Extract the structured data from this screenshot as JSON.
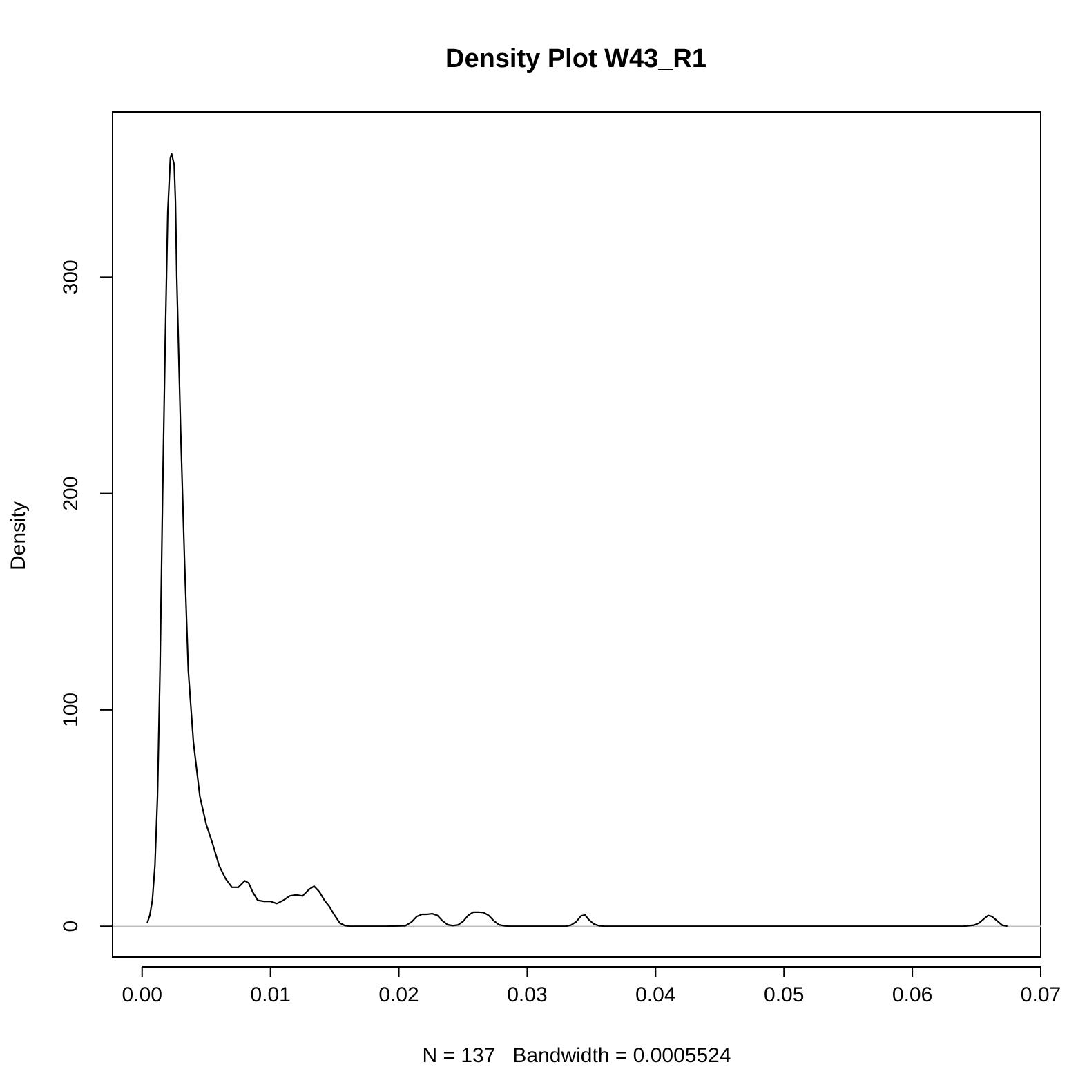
{
  "chart_data": {
    "type": "line",
    "title": "Density Plot W43_R1",
    "xlabel": "N = 137   Bandwidth = 0.0005524",
    "ylabel": "Density",
    "xlim": [
      -0.0023,
      0.07
    ],
    "ylim": [
      -14.3,
      376.4
    ],
    "x_ticks": [
      0.0,
      0.01,
      0.02,
      0.03,
      0.04,
      0.05,
      0.06,
      0.07
    ],
    "x_tick_labels": [
      "0.00",
      "0.01",
      "0.02",
      "0.03",
      "0.04",
      "0.05",
      "0.06",
      "0.07"
    ],
    "y_ticks": [
      0,
      100,
      200,
      300
    ],
    "y_tick_labels": [
      "0",
      "100",
      "200",
      "300"
    ],
    "grid": false,
    "reference_line_y": 0,
    "series": [
      {
        "x": [
          0.0004,
          0.0006,
          0.0008,
          0.001,
          0.0012,
          0.0014,
          0.0016,
          0.0018,
          0.002,
          0.0022,
          0.0023,
          0.0025,
          0.0026,
          0.0027,
          0.003,
          0.0033,
          0.0036,
          0.004,
          0.0045,
          0.005,
          0.0055,
          0.006,
          0.0065,
          0.007,
          0.0075,
          0.008,
          0.0083,
          0.0086,
          0.009,
          0.0095,
          0.01,
          0.0105,
          0.011,
          0.0115,
          0.012,
          0.0125,
          0.013,
          0.0134,
          0.0138,
          0.0142,
          0.0146,
          0.015,
          0.0154,
          0.0158,
          0.0162,
          0.0166,
          0.017,
          0.018,
          0.019,
          0.0205,
          0.021,
          0.0214,
          0.0218,
          0.0222,
          0.0226,
          0.023,
          0.0234,
          0.0238,
          0.0242,
          0.0246,
          0.025,
          0.0254,
          0.0258,
          0.0262,
          0.0266,
          0.027,
          0.0274,
          0.0278,
          0.0282,
          0.0286,
          0.029,
          0.031,
          0.033,
          0.0334,
          0.0338,
          0.0342,
          0.0345,
          0.0348,
          0.0352,
          0.0356,
          0.036,
          0.045,
          0.055,
          0.064,
          0.0648,
          0.0652,
          0.0656,
          0.0659,
          0.0662,
          0.0666,
          0.067,
          0.0674
        ],
        "y": [
          1.5,
          5,
          12,
          28,
          60,
          120,
          200,
          270,
          330,
          355,
          357,
          352,
          335,
          300,
          230,
          170,
          118,
          85,
          60,
          47,
          38,
          28,
          22,
          18,
          18,
          21,
          20,
          16,
          12,
          11.5,
          11.5,
          10.5,
          12,
          14,
          14.5,
          14,
          17,
          18.5,
          16,
          12,
          9,
          5,
          1.5,
          0.3,
          0,
          0,
          0,
          0,
          0,
          0.2,
          2,
          4.5,
          5.5,
          5.5,
          5.8,
          5,
          2.5,
          0.7,
          0.3,
          0.6,
          2.2,
          5,
          6.5,
          6.5,
          6.3,
          5,
          2.5,
          0.7,
          0.2,
          0,
          0,
          0,
          0,
          0.5,
          2,
          4.8,
          5.2,
          3,
          1,
          0.2,
          0,
          0,
          0,
          0,
          0.5,
          1.5,
          3.5,
          5,
          4.5,
          2.5,
          0.5,
          0
        ]
      }
    ]
  }
}
